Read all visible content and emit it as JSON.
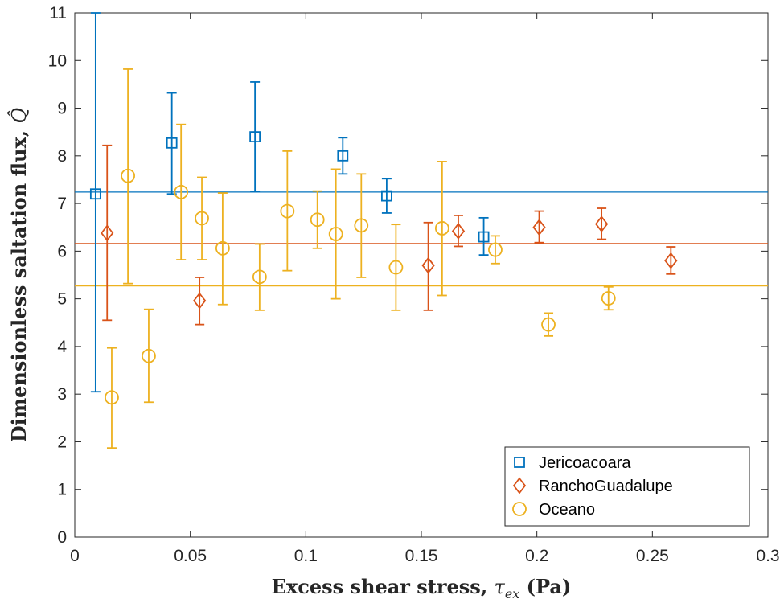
{
  "chart_data": {
    "type": "scatter",
    "title": "",
    "xlabel": "Excess shear stress, τex (Pa)",
    "xlabel_parts": {
      "pre": "Excess shear stress, ",
      "symbol": "τ",
      "subscript": "ex",
      "post": " (Pa)"
    },
    "ylabel": "Dimensionless saltation flux, Q̂",
    "ylabel_parts": {
      "pre": "Dimensionless saltation flux, ",
      "symbol": "Q̂"
    },
    "xlim": [
      0,
      0.3
    ],
    "ylim": [
      0,
      11
    ],
    "xticks": [
      0,
      0.05,
      0.1,
      0.15,
      0.2,
      0.25,
      0.3
    ],
    "xtick_labels": [
      "0",
      "0.05",
      "0.1",
      "0.15",
      "0.2",
      "0.25",
      "0.3"
    ],
    "yticks": [
      0,
      1,
      2,
      3,
      4,
      5,
      6,
      7,
      8,
      9,
      10,
      11
    ],
    "ytick_labels": [
      "0",
      "1",
      "2",
      "3",
      "4",
      "5",
      "6",
      "7",
      "8",
      "9",
      "10",
      "11"
    ],
    "grid": false,
    "legend_position": "bottom-right",
    "series": [
      {
        "name": "Jericoacoara",
        "marker": "square",
        "color": "#0072BD",
        "mean": 7.24,
        "points": [
          {
            "x": 0.009,
            "y": 7.2,
            "ylo": 3.05,
            "yhi": 11.0
          },
          {
            "x": 0.042,
            "y": 8.27,
            "ylo": 7.2,
            "yhi": 9.32
          },
          {
            "x": 0.078,
            "y": 8.4,
            "ylo": 7.25,
            "yhi": 9.55
          },
          {
            "x": 0.116,
            "y": 8.0,
            "ylo": 7.62,
            "yhi": 8.38
          },
          {
            "x": 0.135,
            "y": 7.16,
            "ylo": 6.8,
            "yhi": 7.52
          },
          {
            "x": 0.177,
            "y": 6.3,
            "ylo": 5.92,
            "yhi": 6.7
          }
        ]
      },
      {
        "name": "RanchoGuadalupe",
        "marker": "diamond",
        "color": "#D95319",
        "mean": 6.16,
        "points": [
          {
            "x": 0.014,
            "y": 6.38,
            "ylo": 4.55,
            "yhi": 8.22
          },
          {
            "x": 0.054,
            "y": 4.96,
            "ylo": 4.46,
            "yhi": 5.45
          },
          {
            "x": 0.153,
            "y": 5.7,
            "ylo": 4.76,
            "yhi": 6.6
          },
          {
            "x": 0.166,
            "y": 6.42,
            "ylo": 6.1,
            "yhi": 6.75
          },
          {
            "x": 0.201,
            "y": 6.5,
            "ylo": 6.18,
            "yhi": 6.84
          },
          {
            "x": 0.228,
            "y": 6.57,
            "ylo": 6.25,
            "yhi": 6.9
          },
          {
            "x": 0.258,
            "y": 5.8,
            "ylo": 5.52,
            "yhi": 6.09
          }
        ]
      },
      {
        "name": "Oceano",
        "marker": "circle",
        "color": "#EDB120",
        "mean": 5.27,
        "points": [
          {
            "x": 0.016,
            "y": 2.93,
            "ylo": 1.87,
            "yhi": 3.97
          },
          {
            "x": 0.023,
            "y": 7.58,
            "ylo": 5.32,
            "yhi": 9.82
          },
          {
            "x": 0.032,
            "y": 3.8,
            "ylo": 2.83,
            "yhi": 4.78
          },
          {
            "x": 0.046,
            "y": 7.24,
            "ylo": 5.82,
            "yhi": 8.66
          },
          {
            "x": 0.055,
            "y": 6.69,
            "ylo": 5.82,
            "yhi": 7.55
          },
          {
            "x": 0.064,
            "y": 6.06,
            "ylo": 4.88,
            "yhi": 7.22
          },
          {
            "x": 0.08,
            "y": 5.46,
            "ylo": 4.76,
            "yhi": 6.15
          },
          {
            "x": 0.092,
            "y": 6.84,
            "ylo": 5.59,
            "yhi": 8.1
          },
          {
            "x": 0.105,
            "y": 6.66,
            "ylo": 6.06,
            "yhi": 7.26
          },
          {
            "x": 0.113,
            "y": 6.36,
            "ylo": 5.0,
            "yhi": 7.72
          },
          {
            "x": 0.124,
            "y": 6.54,
            "ylo": 5.45,
            "yhi": 7.62
          },
          {
            "x": 0.139,
            "y": 5.66,
            "ylo": 4.76,
            "yhi": 6.56
          },
          {
            "x": 0.159,
            "y": 6.48,
            "ylo": 5.07,
            "yhi": 7.88
          },
          {
            "x": 0.182,
            "y": 6.03,
            "ylo": 5.74,
            "yhi": 6.32
          },
          {
            "x": 0.205,
            "y": 4.46,
            "ylo": 4.22,
            "yhi": 4.7
          },
          {
            "x": 0.231,
            "y": 5.01,
            "ylo": 4.77,
            "yhi": 5.25
          }
        ]
      }
    ]
  }
}
